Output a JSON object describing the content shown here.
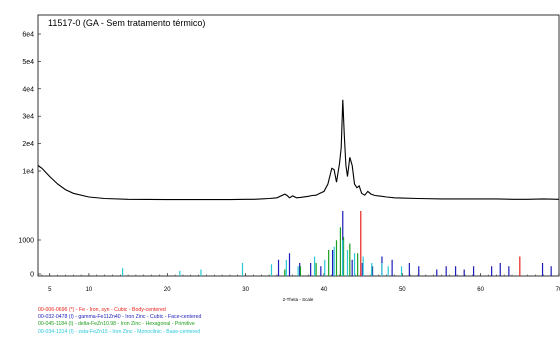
{
  "chart_data": {
    "type": "line",
    "title": "11517-0 (GA - Sem tratamento térmico)",
    "xlabel": "2-Theta - Scale",
    "xlim": [
      3.5,
      70
    ],
    "x_ticks": [
      5,
      10,
      20,
      30,
      40,
      50,
      60,
      70
    ],
    "y_ticks_upper": [
      "1e4",
      "2e4",
      "3e4",
      "4e4",
      "5e4",
      "6e4"
    ],
    "y_ticks_lower": [
      "0",
      "1000"
    ],
    "pattern": {
      "x": [
        3.5,
        4.0,
        5.0,
        6.0,
        7.0,
        8.0,
        10.0,
        12.0,
        15.0,
        20.0,
        25.0,
        28.0,
        30.0,
        31.0,
        32.0,
        33.0,
        34.0,
        35.0,
        35.3,
        35.6,
        36.0,
        36.5,
        37.0,
        38.0,
        38.5,
        39.0,
        39.5,
        40.0,
        40.5,
        41.0,
        41.3,
        41.6,
        42.0,
        42.2,
        42.4,
        42.6,
        42.8,
        43.0,
        43.3,
        43.6,
        43.9,
        44.2,
        44.5,
        44.8,
        45.2,
        45.6,
        46.0,
        46.5,
        47.0,
        48.0,
        49.0,
        50.0,
        52.0,
        55.0,
        58.0,
        60.0,
        62.0,
        64.0,
        66.0,
        68.0,
        70.0
      ],
      "y": [
        12000,
        11000,
        8500,
        6500,
        5000,
        4000,
        3000,
        2600,
        2400,
        2300,
        2300,
        2300,
        2400,
        2400,
        2500,
        2600,
        2800,
        3800,
        3400,
        2800,
        3300,
        2800,
        2900,
        3200,
        3400,
        3500,
        4000,
        4500,
        6500,
        11000,
        10500,
        7000,
        13000,
        18500,
        36000,
        23000,
        12000,
        8500,
        15000,
        12000,
        6500,
        5500,
        6000,
        4000,
        3500,
        4500,
        3800,
        3400,
        3300,
        3000,
        2800,
        2700,
        2600,
        2500,
        2500,
        2500,
        2500,
        2400,
        2400,
        2500,
        2400
      ]
    },
    "reference_lines": [
      {
        "label": "00-006-0696 (*) - Fe - Iron, syn - Cubic - Body-centered",
        "color": "#e8201a",
        "x": [
          44.7,
          65.0
        ],
        "h": [
          100,
          30
        ]
      },
      {
        "label": "00-032-0478 (I) - gamma-Fe11Zn40 - Iron Zinc - Cubic - Face-centered",
        "color": "#1c1cb8",
        "x": [
          34.2,
          35.6,
          36.9,
          38.3,
          39.6,
          41.1,
          42.4,
          43.6,
          44.9,
          46.2,
          47.4,
          48.7,
          50.9,
          52.1,
          54.4,
          55.6,
          56.8,
          57.9,
          59.1,
          61.4,
          62.5,
          63.6,
          67.9,
          69.0
        ],
        "h": [
          25,
          35,
          20,
          20,
          15,
          40,
          100,
          25,
          20,
          15,
          30,
          25,
          20,
          15,
          10,
          15,
          15,
          10,
          15,
          15,
          20,
          15,
          20,
          15
        ]
      },
      {
        "label": "00-045-1184 (I) - delta-FeZn10.98 - Iron Zinc - Hexagonal - Primitive",
        "color": "#1e9e1e",
        "x": [
          35.0,
          37.0,
          39.0,
          40.6,
          41.6,
          42.1,
          42.5,
          43.3,
          44.3,
          46.1
        ],
        "h": [
          10,
          15,
          20,
          40,
          55,
          75,
          60,
          50,
          35,
          15
        ]
      },
      {
        "label": "00-034-1314 (I) - zeta-FeZn15 - Iron Zinc - Monoclinic - Base-centered",
        "color": "#28c8d8",
        "x": [
          14.3,
          21.6,
          24.3,
          29.6,
          33.3,
          35.2,
          36.7,
          38.8,
          40.1,
          41.3,
          42.4,
          43.0,
          43.9,
          45.0,
          46.1,
          47.4,
          48.2,
          49.9
        ],
        "h": [
          12,
          8,
          10,
          20,
          18,
          25,
          15,
          30,
          25,
          45,
          55,
          40,
          35,
          30,
          20,
          20,
          15,
          15
        ]
      }
    ]
  }
}
